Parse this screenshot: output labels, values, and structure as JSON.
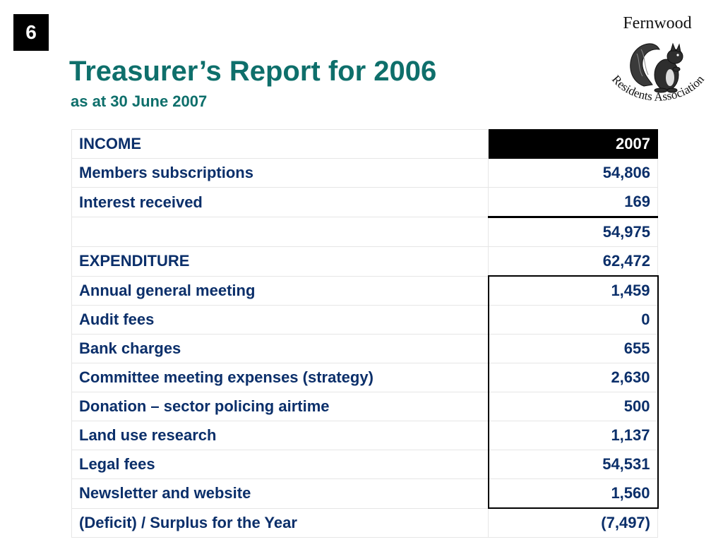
{
  "slide": {
    "number": "6",
    "title": "Treasurer’s Report for 2006",
    "subtitle": "as at 30 June 2007"
  },
  "logo": {
    "top_text": "Fernwood",
    "arc_text": "Residents Association",
    "icon": "squirrel-icon"
  },
  "table": {
    "header": {
      "label": "INCOME",
      "value": "2007"
    },
    "rows": [
      {
        "label": "Members subscriptions",
        "value": "54,806"
      },
      {
        "label": "Interest received",
        "value": "169"
      },
      {
        "label": "",
        "value": "54,975"
      },
      {
        "label": "EXPENDITURE",
        "value": "62,472"
      },
      {
        "label": "Annual general meeting",
        "value": "1,459"
      },
      {
        "label": "Audit fees",
        "value": "0"
      },
      {
        "label": "Bank charges",
        "value": "655"
      },
      {
        "label": "Committee meeting expenses (strategy)",
        "value": "2,630"
      },
      {
        "label": "Donation – sector policing airtime",
        "value": "500"
      },
      {
        "label": "Land use research",
        "value": "1,137"
      },
      {
        "label": "Legal fees",
        "value": "54,531"
      },
      {
        "label": "Newsletter and website",
        "value": "1,560"
      },
      {
        "label": "(Deficit) / Surplus for the Year",
        "value": "(7,497)"
      }
    ]
  },
  "colors": {
    "title": "#0e6f6b",
    "table_text": "#0b2f6a",
    "header_bg": "#000000"
  }
}
